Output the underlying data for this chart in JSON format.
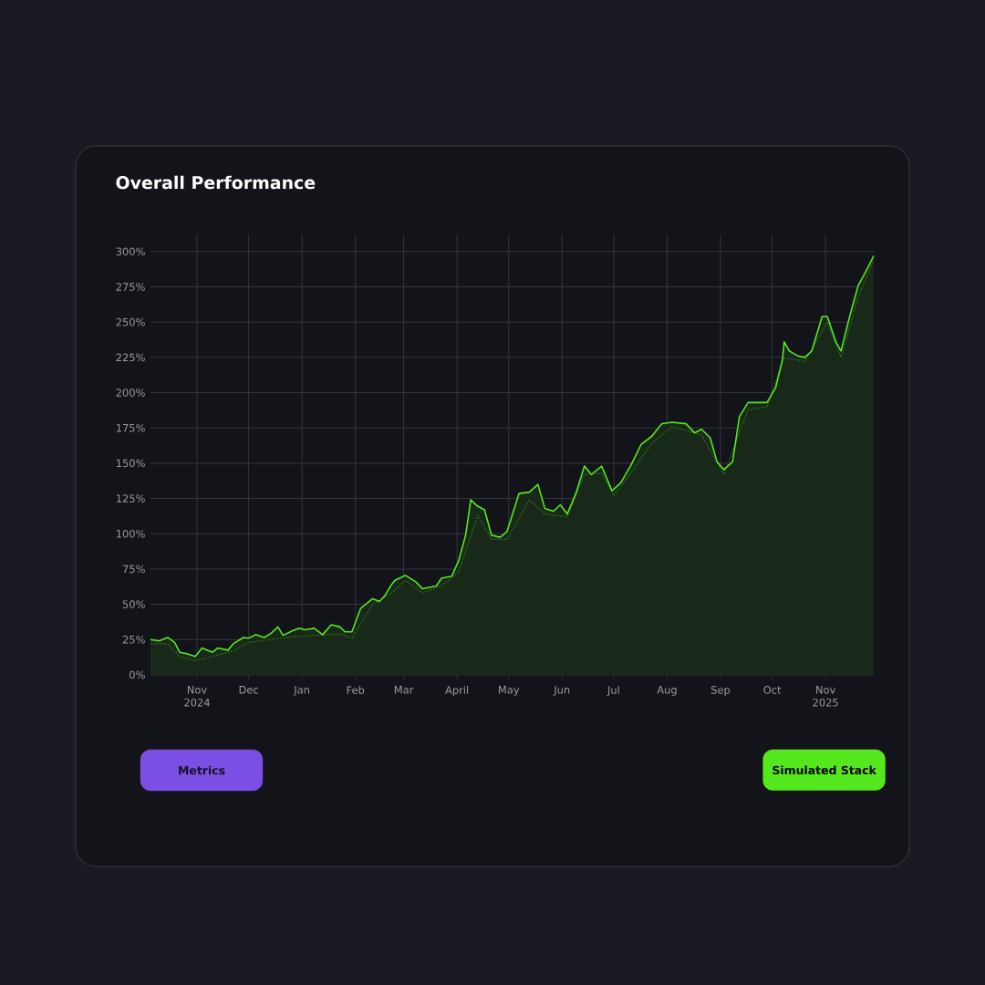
{
  "chart_data": {
    "type": "line",
    "title": "Overall Performance",
    "annotations": [
      "Metrics"
    ],
    "grid": true,
    "legend": "bottom right",
    "marker": "none",
    "xlim": [
      "2024-10-05",
      "2025-11-29"
    ],
    "ylim": [
      -3,
      312
    ],
    "xticks": [
      {
        "value": "2024-11-01",
        "label": "Nov 2024"
      },
      {
        "value": "2024-12-01",
        "label": "Dec"
      },
      {
        "value": "2025-01-01",
        "label": "Jan"
      },
      {
        "value": "2025-02-01",
        "label": "Feb"
      },
      {
        "value": "2025-03-01",
        "label": "Mar"
      },
      {
        "value": "2025-04-01",
        "label": "April"
      },
      {
        "value": "2025-05-01",
        "label": "May"
      },
      {
        "value": "2025-06-01",
        "label": "Jun"
      },
      {
        "value": "2025-07-01",
        "label": "Jul"
      },
      {
        "value": "2025-08-01",
        "label": "Aug"
      },
      {
        "value": "2025-09-01",
        "label": "Sep"
      },
      {
        "value": "2025-10-01",
        "label": "Oct"
      },
      {
        "value": "2025-11-01",
        "label": "Nov 2025"
      }
    ],
    "yticks": [
      {
        "value": 0,
        "label": "0%"
      },
      {
        "value": 25,
        "label": "25%"
      },
      {
        "value": 50,
        "label": "50%"
      },
      {
        "value": 75,
        "label": "75%"
      },
      {
        "value": 100,
        "label": "100%"
      },
      {
        "value": 125,
        "label": "125%"
      },
      {
        "value": 150,
        "label": "150%"
      },
      {
        "value": 175,
        "label": "175%"
      },
      {
        "value": 200,
        "label": "200%"
      },
      {
        "value": 225,
        "label": "225%"
      },
      {
        "value": 250,
        "label": "250%"
      },
      {
        "value": 275,
        "label": "275%"
      },
      {
        "value": 300,
        "label": "300%"
      }
    ],
    "series": [
      {
        "name": "Simulated Stack",
        "type": "area",
        "color": "#56e81e",
        "line_style": "solid",
        "x": [
          "2024-10-05",
          "2024-10-10",
          "2024-10-15",
          "2024-10-19",
          "2024-10-22",
          "2024-10-26",
          "2024-10-31",
          "2024-11-04",
          "2024-11-10",
          "2024-11-13",
          "2024-11-19",
          "2024-11-22",
          "2024-11-28",
          "2024-12-01",
          "2024-12-05",
          "2024-12-10",
          "2024-12-14",
          "2024-12-18",
          "2024-12-21",
          "2024-12-26",
          "2024-12-30",
          "2025-01-03",
          "2025-01-08",
          "2025-01-13",
          "2025-01-18",
          "2025-01-23",
          "2025-01-26",
          "2025-01-30",
          "2025-02-04",
          "2025-02-11",
          "2025-02-15",
          "2025-02-18",
          "2025-02-22",
          "2025-02-24",
          "2025-03-02",
          "2025-03-08",
          "2025-03-12",
          "2025-03-20",
          "2025-03-23",
          "2025-03-29",
          "2025-04-02",
          "2025-04-06",
          "2025-04-09",
          "2025-04-13",
          "2025-04-17",
          "2025-04-21",
          "2025-04-26",
          "2025-04-30",
          "2025-05-07",
          "2025-05-13",
          "2025-05-18",
          "2025-05-22",
          "2025-05-27",
          "2025-05-31",
          "2025-06-04",
          "2025-06-09",
          "2025-06-14",
          "2025-06-18",
          "2025-06-24",
          "2025-06-30",
          "2025-07-05",
          "2025-07-11",
          "2025-07-17",
          "2025-07-23",
          "2025-07-29",
          "2025-08-04",
          "2025-08-12",
          "2025-08-17",
          "2025-08-21",
          "2025-08-26",
          "2025-08-30",
          "2025-09-03",
          "2025-09-08",
          "2025-09-12",
          "2025-09-17",
          "2025-09-22",
          "2025-09-28",
          "2025-10-03",
          "2025-10-07",
          "2025-10-08",
          "2025-10-11",
          "2025-10-16",
          "2025-10-20",
          "2025-10-24",
          "2025-10-30",
          "2025-11-02",
          "2025-11-07",
          "2025-11-10",
          "2025-11-15",
          "2025-11-20",
          "2025-11-24",
          "2025-11-29"
        ],
        "values": [
          25,
          24,
          26.5,
          23,
          16,
          15,
          13,
          19,
          16,
          19,
          17.5,
          22,
          26.5,
          26,
          28.5,
          26.5,
          29.5,
          34,
          28,
          31,
          33,
          32,
          33,
          28.5,
          35.5,
          34,
          30.5,
          30.5,
          47,
          54,
          52,
          56,
          64,
          67,
          70.5,
          66,
          61,
          63,
          68.5,
          70,
          81,
          99,
          124,
          119.5,
          117,
          99,
          97.5,
          101.5,
          128.5,
          129.5,
          135,
          118,
          116,
          120.5,
          114,
          128.5,
          148,
          142,
          148,
          130.5,
          136,
          148.5,
          163.5,
          169,
          178,
          179,
          178,
          171.5,
          174,
          168,
          151,
          145.5,
          151,
          183,
          193,
          193,
          193,
          203.5,
          223.5,
          236,
          229.5,
          226,
          225,
          229.5,
          254,
          254,
          236,
          229.5,
          254,
          276,
          285,
          297
        ]
      },
      {
        "color": "#3c8f25",
        "line_style": "dotted",
        "x": [
          "2024-10-05",
          "2024-10-15",
          "2024-10-22",
          "2024-10-31",
          "2024-11-10",
          "2024-11-22",
          "2024-12-01",
          "2024-12-14",
          "2024-12-26",
          "2025-01-08",
          "2025-01-23",
          "2025-01-30",
          "2025-02-11",
          "2025-02-22",
          "2025-03-02",
          "2025-03-12",
          "2025-03-23",
          "2025-04-02",
          "2025-04-13",
          "2025-04-21",
          "2025-04-30",
          "2025-05-13",
          "2025-05-22",
          "2025-06-04",
          "2025-06-14",
          "2025-06-24",
          "2025-07-01",
          "2025-07-11",
          "2025-07-23",
          "2025-08-04",
          "2025-08-21",
          "2025-09-03",
          "2025-09-17",
          "2025-09-28",
          "2025-10-08",
          "2025-10-20",
          "2025-11-02",
          "2025-11-10",
          "2025-11-20",
          "2025-11-29"
        ],
        "values": [
          22,
          22,
          13,
          10,
          13,
          17,
          23,
          25,
          27,
          28,
          29,
          26,
          50,
          58,
          67,
          58,
          63,
          73,
          113,
          96,
          96,
          124,
          114,
          112,
          142,
          143,
          127,
          143,
          164,
          176,
          170,
          142,
          188,
          190,
          225,
          222,
          250,
          225,
          268,
          294
        ]
      }
    ]
  }
}
